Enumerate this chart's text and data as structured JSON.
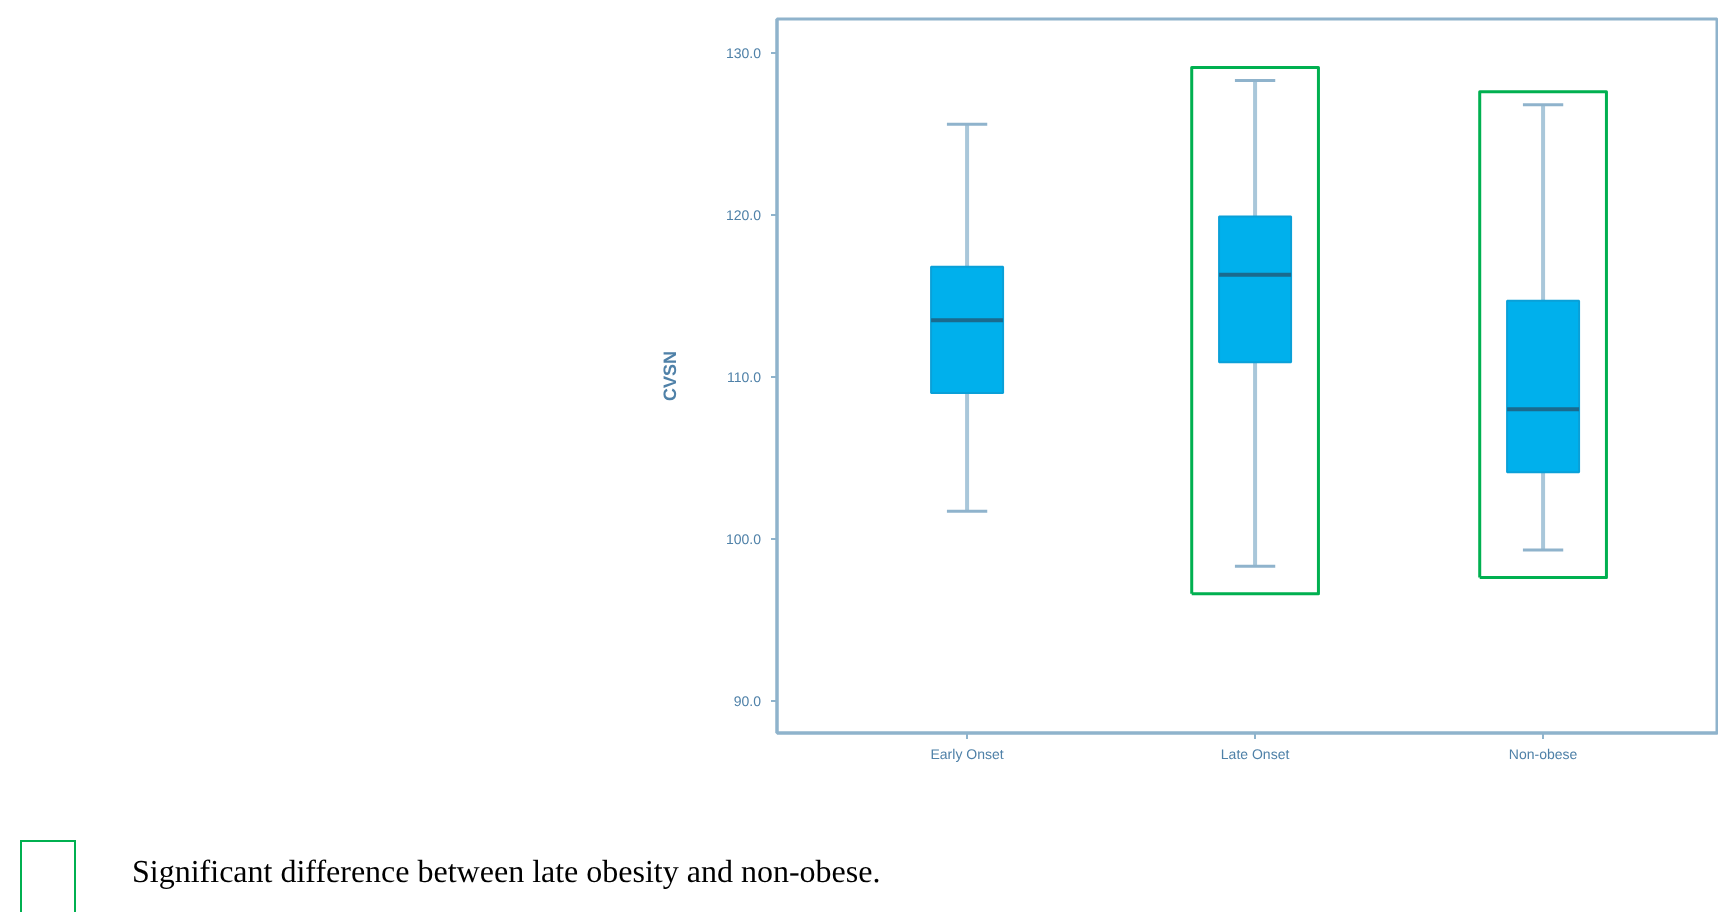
{
  "chart_data": {
    "type": "box",
    "ylabel": "CVSN",
    "categories": [
      "Early Onset",
      "Late Onset",
      "Non-obese"
    ],
    "boxes": [
      {
        "low": 101.7,
        "q1": 109.0,
        "median": 113.5,
        "q3": 116.8,
        "high": 125.6
      },
      {
        "low": 98.3,
        "q1": 110.9,
        "median": 116.3,
        "q3": 119.9,
        "high": 128.3
      },
      {
        "low": 99.3,
        "q1": 104.1,
        "median": 108.0,
        "q3": 114.7,
        "high": 126.8
      }
    ],
    "color": "#00b0ec",
    "ylim": [
      88.0,
      132.1
    ],
    "yticks": [
      {
        "value": 90,
        "label": "90.0"
      },
      {
        "value": 100,
        "label": "100.0"
      },
      {
        "value": 110,
        "label": "110.0"
      },
      {
        "value": 120,
        "label": "120.0"
      },
      {
        "value": 130,
        "label": "130.0"
      }
    ],
    "annotations": [
      "Significant difference between late obesity and non-obese."
    ]
  }
}
